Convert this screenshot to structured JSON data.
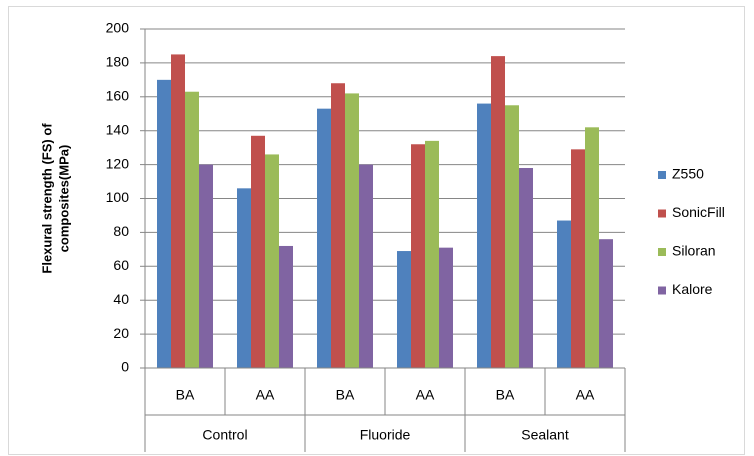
{
  "chart_data": {
    "type": "bar",
    "ylabel": [
      "Flexural strength (FS) of",
      "composites(MPa)"
    ],
    "categories": [
      "BA",
      "AA",
      "BA",
      "AA",
      "BA",
      "AA"
    ],
    "groups": [
      "Control",
      "Fluoride",
      "Sealant"
    ],
    "series": [
      {
        "name": "Z550",
        "color": "#4f81bd",
        "values": [
          170,
          106,
          153,
          69,
          156,
          87
        ]
      },
      {
        "name": "SonicFill",
        "color": "#c0504d",
        "values": [
          185,
          137,
          168,
          132,
          184,
          129
        ]
      },
      {
        "name": "Siloran",
        "color": "#9bbb59",
        "values": [
          163,
          126,
          162,
          134,
          155,
          142
        ]
      },
      {
        "name": "Kalore",
        "color": "#8064a2",
        "values": [
          120,
          72,
          120,
          71,
          118,
          76
        ]
      }
    ],
    "ylim": [
      0,
      200
    ],
    "yticks": [
      0,
      20,
      40,
      60,
      80,
      100,
      120,
      140,
      160,
      180,
      200
    ],
    "grid": true,
    "legend": "right"
  }
}
